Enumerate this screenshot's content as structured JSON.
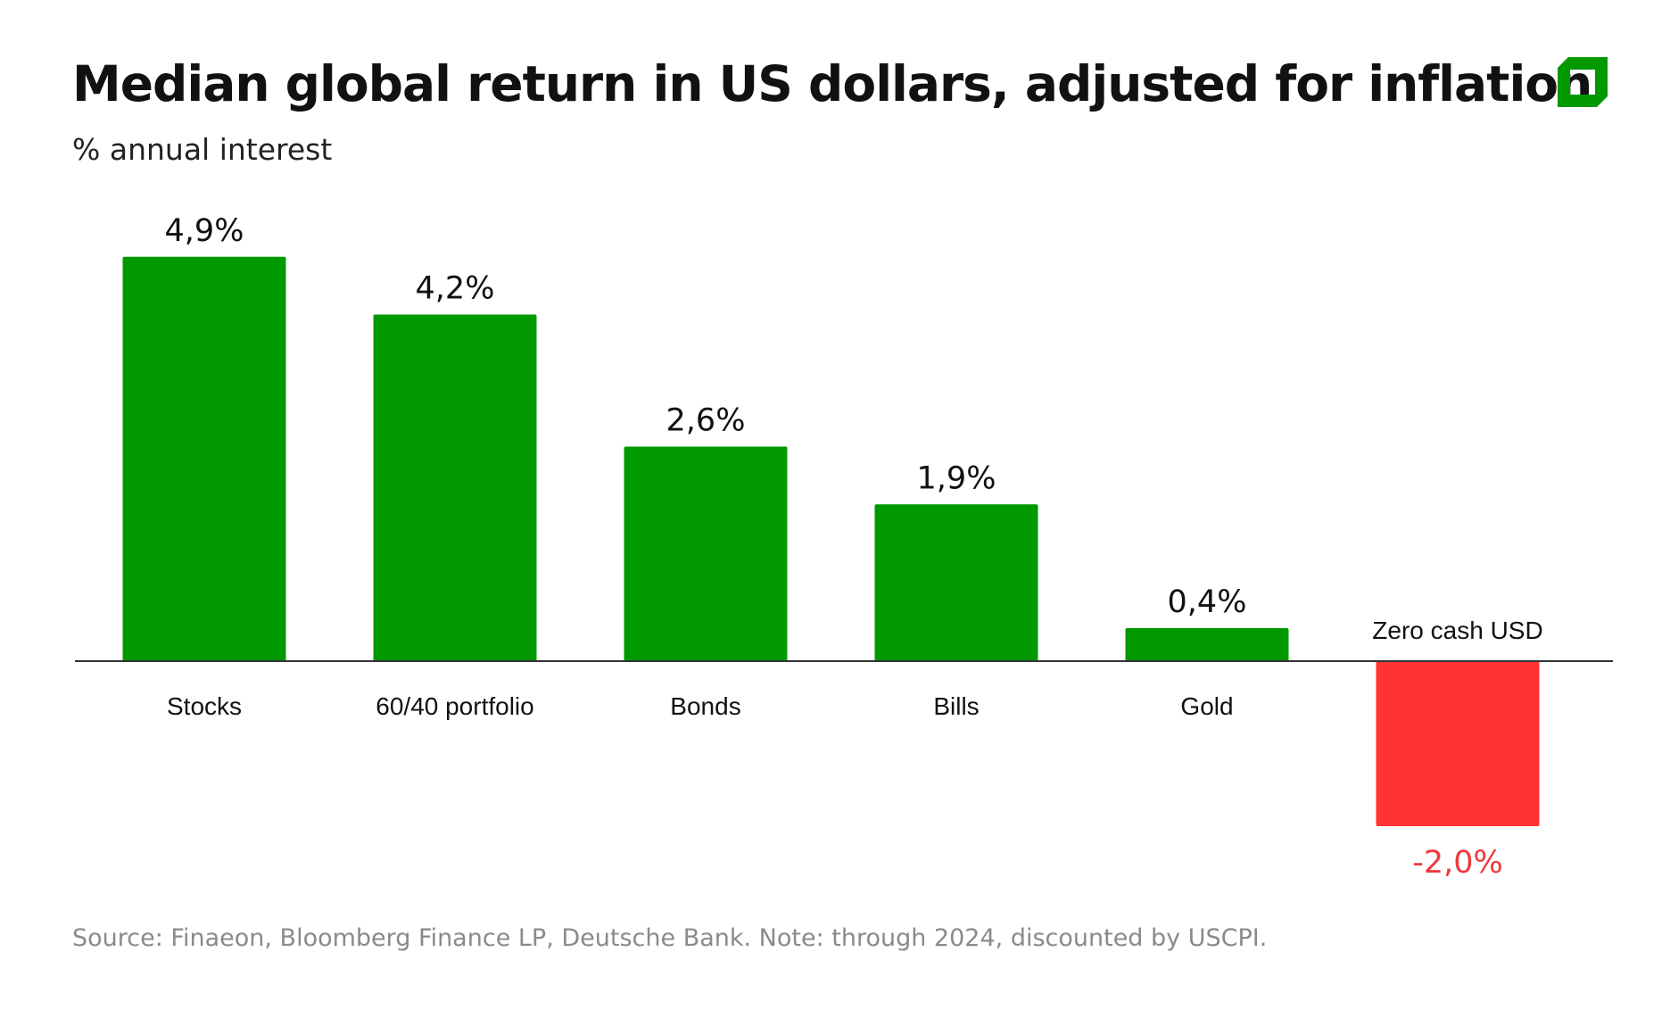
{
  "chart_data": {
    "type": "bar",
    "title": "Median global return in US dollars, adjusted for inflation",
    "subtitle": "% annual interest",
    "categories": [
      "Stocks",
      "60/40 portfolio",
      "Bonds",
      "Bills",
      "Gold",
      "Zero cash USD"
    ],
    "values": [
      4.9,
      4.2,
      2.6,
      1.9,
      0.4,
      -2.0
    ],
    "data_labels": [
      "4,9%",
      "4,2%",
      "2,6%",
      "1,9%",
      "0,4%",
      "-2,0%"
    ],
    "ylim": [
      -2.0,
      4.9
    ],
    "grid": false,
    "colors": {
      "positive": "#009900",
      "negative": "#ff3333",
      "negative_label": "#f0393b"
    },
    "source": "Source: Finaeon, Bloomberg Finance LP, Deutsche Bank. Note: through 2024, discounted by USCPI."
  },
  "brand": {
    "logo_icon": "green-square-logo",
    "color": "#009900"
  }
}
